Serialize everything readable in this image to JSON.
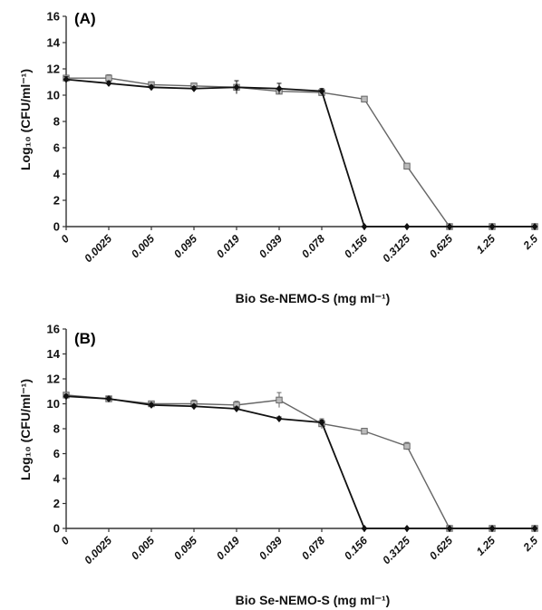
{
  "chart_data": [
    {
      "type": "line",
      "panel_label": "(A)",
      "categories": [
        "0",
        "0.0025",
        "0.005",
        "0.095",
        "0.019",
        "0.039",
        "0.078",
        "0.156",
        "0.3125",
        "0.625",
        "1.25",
        "2.5"
      ],
      "xlabel": "Bio Se-NEMO-S (mg ml⁻¹)",
      "ylabel": "Log₁₀ (CFU/ml⁻¹)",
      "ylim": [
        0,
        16
      ],
      "yticks": [
        0,
        2,
        4,
        6,
        8,
        10,
        12,
        14,
        16
      ],
      "grid": false,
      "legend": "none",
      "series": [
        {
          "color": "#111111",
          "marker": "diamond",
          "values": [
            11.2,
            10.9,
            10.6,
            10.5,
            10.6,
            10.5,
            10.3,
            0,
            0,
            0,
            0,
            0
          ],
          "errors": [
            0.2,
            0.15,
            0.15,
            0.15,
            0.5,
            0.4,
            0.2,
            0,
            0,
            0,
            0,
            0
          ]
        },
        {
          "color": "#666666",
          "marker": "square",
          "values": [
            11.3,
            11.3,
            10.8,
            10.7,
            10.6,
            10.3,
            10.2,
            9.7,
            4.6,
            0,
            0,
            0
          ],
          "errors": [
            0.2,
            0.25,
            0.2,
            0.2,
            0.2,
            0.2,
            0.2,
            0.2,
            0.2,
            0,
            0,
            0
          ]
        }
      ]
    },
    {
      "type": "line",
      "panel_label": "(B)",
      "categories": [
        "0",
        "0.0025",
        "0.005",
        "0.095",
        "0.019",
        "0.039",
        "0.078",
        "0.156",
        "0.3125",
        "0.625",
        "1.25",
        "2.5"
      ],
      "xlabel": "Bio Se-NEMO-S (mg ml⁻¹)",
      "ylabel": "Log₁₀ (CFU/ml⁻¹)",
      "ylim": [
        0,
        16
      ],
      "yticks": [
        0,
        2,
        4,
        6,
        8,
        10,
        12,
        14,
        16
      ],
      "grid": false,
      "legend": "none",
      "series": [
        {
          "color": "#111111",
          "marker": "diamond",
          "values": [
            10.6,
            10.4,
            9.9,
            9.8,
            9.6,
            8.8,
            8.5,
            0,
            0,
            0,
            0,
            0
          ],
          "errors": [
            0.15,
            0.15,
            0.15,
            0.15,
            0.15,
            0.15,
            0.2,
            0,
            0,
            0,
            0,
            0
          ]
        },
        {
          "color": "#666666",
          "marker": "square",
          "values": [
            10.7,
            10.4,
            10.0,
            10.0,
            9.9,
            10.3,
            8.4,
            7.8,
            6.6,
            0,
            0,
            0
          ],
          "errors": [
            0.2,
            0.2,
            0.2,
            0.3,
            0.3,
            0.6,
            0.4,
            0.2,
            0.3,
            0,
            0,
            0
          ]
        }
      ]
    }
  ]
}
